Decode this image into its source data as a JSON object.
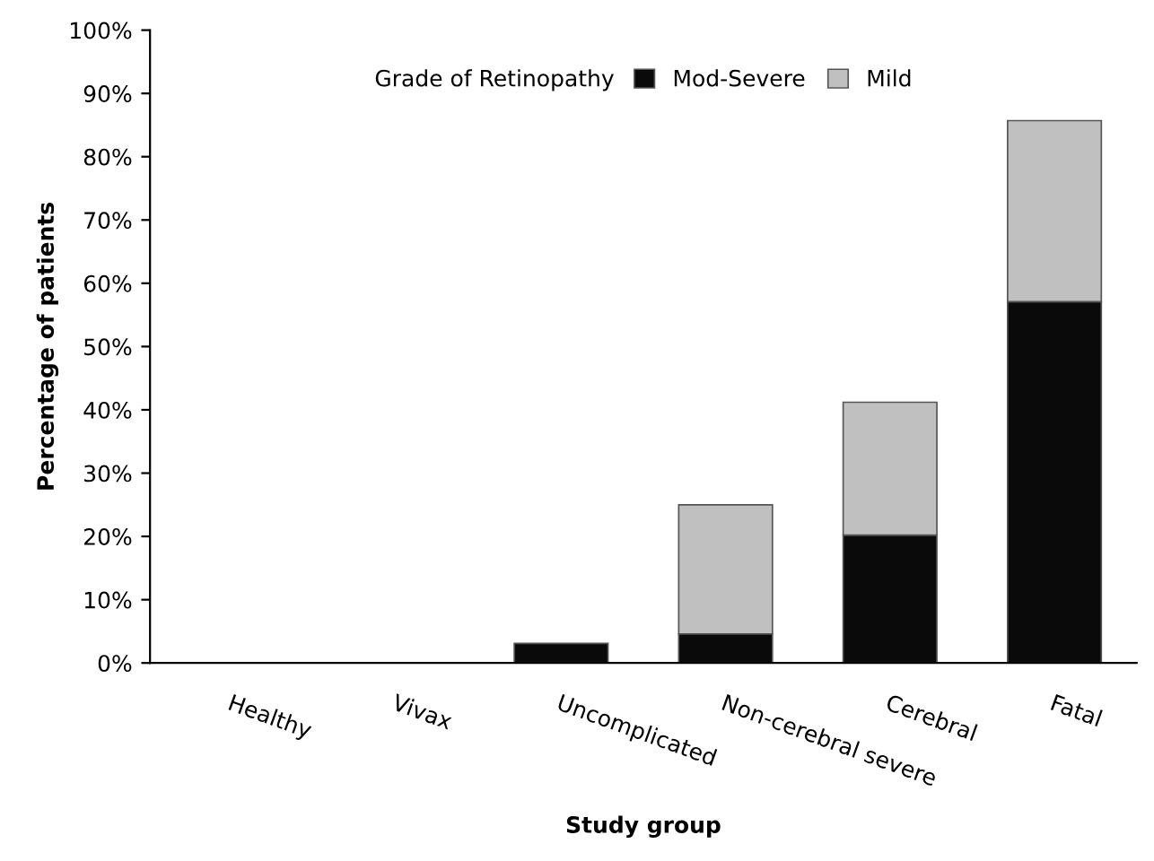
{
  "chart_data": {
    "type": "bar",
    "stacked": true,
    "xlabel": "Study group",
    "ylabel": "Percentage of patients",
    "legend_title": "Grade of Retinopathy",
    "legend": "top",
    "categories": [
      "Healthy",
      "Vivax",
      "Uncomplicated",
      "Non-cerebral severe",
      "Cerebral",
      "Fatal"
    ],
    "series": [
      {
        "name": "Mod-Severe",
        "color": "#0a0a0a",
        "values": [
          0,
          0,
          3.1,
          4.6,
          20.2,
          57.1
        ]
      },
      {
        "name": "Mild",
        "color": "#c0c0c0",
        "values": [
          0,
          0,
          0,
          20.4,
          21.0,
          28.6
        ]
      }
    ],
    "ylim": [
      0,
      100
    ],
    "yticks": [
      {
        "value": 0,
        "label": "0%"
      },
      {
        "value": 10,
        "label": "10%"
      },
      {
        "value": 20,
        "label": "20%"
      },
      {
        "value": 30,
        "label": "30%"
      },
      {
        "value": 40,
        "label": "40%"
      },
      {
        "value": 50,
        "label": "50%"
      },
      {
        "value": 60,
        "label": "60%"
      },
      {
        "value": 70,
        "label": "70%"
      },
      {
        "value": 80,
        "label": "80%"
      },
      {
        "value": 90,
        "label": "90%"
      },
      {
        "value": 100,
        "label": "100%"
      }
    ],
    "grid": false
  }
}
